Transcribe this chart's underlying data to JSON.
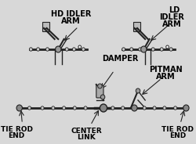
{
  "bg_color": "#d8d8d8",
  "title": "",
  "labels": {
    "hd_idler_arm": [
      "HD IDLER",
      "ARM"
    ],
    "ld_idler_arm": [
      "LD",
      "IDLER",
      "ARM"
    ],
    "damper": "DAMPER",
    "pitman_arm": [
      "PITMAN",
      "ARM"
    ],
    "tie_rod_end_left": [
      "TIE ROD",
      "END"
    ],
    "center_link": [
      "CENTER",
      "LINK"
    ],
    "tie_rod_end_right": [
      "TIE ROD",
      "END"
    ]
  },
  "font_size_label": 6.5,
  "font_size_bold": 7.0,
  "line_color": "#222222",
  "line_color2": "#555555"
}
